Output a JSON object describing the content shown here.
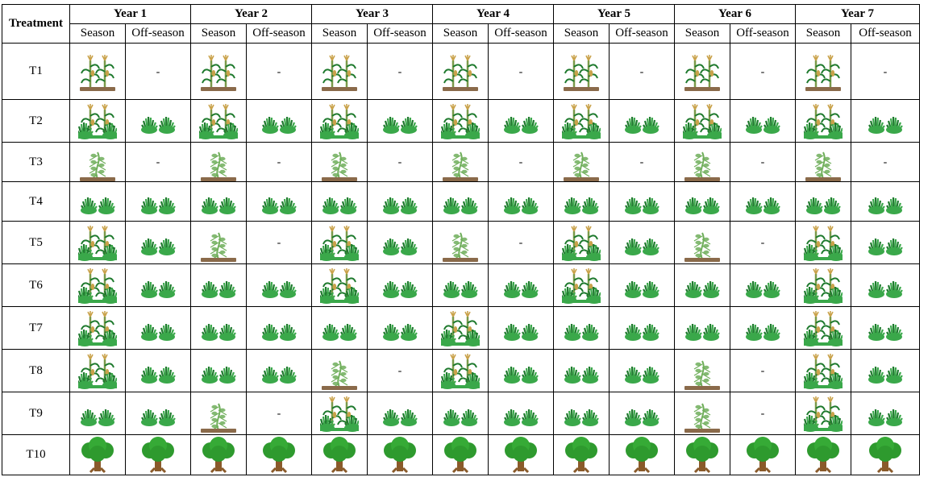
{
  "header": {
    "treatment": "Treatment",
    "years": [
      "Year 1",
      "Year 2",
      "Year 3",
      "Year 4",
      "Year 5",
      "Year 6",
      "Year 7"
    ],
    "season": "Season",
    "off_season": "Off-season"
  },
  "legend_icons": {
    "C": "maize-on-soil-icon",
    "CG": "maize-with-grass-icon",
    "G": "grass-icon",
    "B": "bean-on-soil-icon",
    "BG": "bean-with-grass-icon",
    "T": "tree-icon",
    "-": "dash"
  },
  "dash_text": "-",
  "rows": [
    {
      "label": "T1",
      "cells": [
        "C",
        "-",
        "C",
        "-",
        "C",
        "-",
        "C",
        "-",
        "C",
        "-",
        "C",
        "-",
        "C",
        "-"
      ]
    },
    {
      "label": "T2",
      "cells": [
        "CG",
        "G",
        "CG",
        "G",
        "CG",
        "G",
        "CG",
        "G",
        "CG",
        "G",
        "CG",
        "G",
        "CG",
        "G"
      ]
    },
    {
      "label": "T3",
      "cells": [
        "B",
        "-",
        "B",
        "-",
        "B",
        "-",
        "B",
        "-",
        "B",
        "-",
        "B",
        "-",
        "B",
        "-"
      ]
    },
    {
      "label": "T4",
      "cells": [
        "G",
        "G",
        "G",
        "G",
        "G",
        "G",
        "G",
        "G",
        "G",
        "G",
        "G",
        "G",
        "G",
        "G"
      ]
    },
    {
      "label": "T5",
      "cells": [
        "CG",
        "G",
        "B",
        "-",
        "CG",
        "G",
        "B",
        "-",
        "CG",
        "G",
        "B",
        "-",
        "CG",
        "G"
      ]
    },
    {
      "label": "T6",
      "cells": [
        "CG",
        "G",
        "G",
        "G",
        "CG",
        "G",
        "G",
        "G",
        "CG",
        "G",
        "G",
        "G",
        "CG",
        "G"
      ]
    },
    {
      "label": "T7",
      "cells": [
        "CG",
        "G",
        "G",
        "G",
        "G",
        "G",
        "CG",
        "G",
        "G",
        "G",
        "G",
        "G",
        "CG",
        "G"
      ]
    },
    {
      "label": "T8",
      "cells": [
        "CG",
        "G",
        "G",
        "G",
        "B",
        "-",
        "CG",
        "G",
        "G",
        "G",
        "B",
        "-",
        "CG",
        "G"
      ]
    },
    {
      "label": "T9",
      "cells": [
        "G",
        "G",
        "B",
        "-",
        "CG",
        "G",
        "G",
        "G",
        "G",
        "G",
        "B",
        "-",
        "CG",
        "G"
      ]
    },
    {
      "label": "T10",
      "cells": [
        "T",
        "T",
        "T",
        "T",
        "T",
        "T",
        "T",
        "T",
        "T",
        "T",
        "T",
        "T",
        "T",
        "T"
      ]
    }
  ],
  "colors": {
    "grass": "#3aa84a",
    "grass_dark": "#1f7a2e",
    "soil": "#8a6a4a",
    "maize_stalk": "#7a9a4a",
    "tassel": "#c9a24a",
    "bean": "#6fae5a",
    "tree_leaf": "#2e9a2e",
    "trunk": "#8a5a2a"
  }
}
